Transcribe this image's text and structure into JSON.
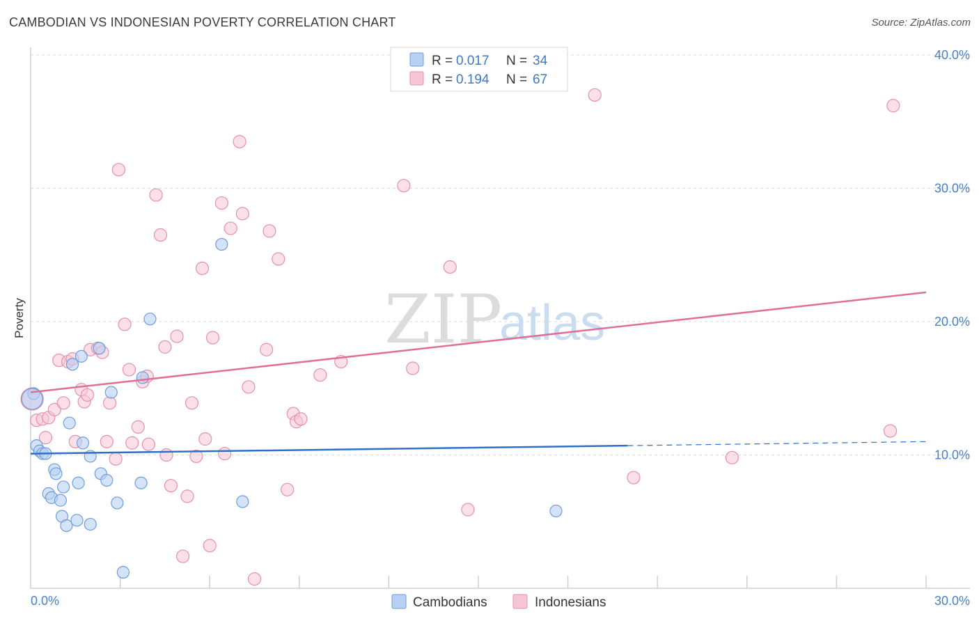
{
  "title": "CAMBODIAN VS INDONESIAN POVERTY CORRELATION CHART",
  "source": "Source: ZipAtlas.com",
  "watermark": {
    "zip": "ZIP",
    "atlas": "atlas"
  },
  "colors": {
    "cambodians_fill": "#b7d0f3",
    "cambodians_stroke": "#6e9ddc",
    "cambodians_line": "#2d6fc9",
    "indonesians_fill": "#f7c6d6",
    "indonesians_stroke": "#e58fae",
    "indonesians_line": "#e06f98",
    "grid": "#d9d9d9",
    "tick_text": "#4a7fc8"
  },
  "legend": {
    "r_label": "R =",
    "n_label": "N =",
    "cambodians_r": "0.017",
    "cambodians_n": "34",
    "indonesians_r": "0.194",
    "indonesians_n": "67"
  },
  "bottom_legend": {
    "cambodians": "Cambodians",
    "indonesians": "Indonesians"
  },
  "chart_data": {
    "type": "scatter",
    "title": "CAMBODIAN VS INDONESIAN POVERTY CORRELATION CHART",
    "xlabel": "",
    "ylabel": "Poverty",
    "xlim": [
      0,
      30
    ],
    "ylim": [
      0,
      40
    ],
    "x_tick_labels": [
      "0.0%",
      "30.0%"
    ],
    "y_ticks": [
      10,
      20,
      30,
      40
    ],
    "y_tick_labels": [
      "10.0%",
      "20.0%",
      "30.0%",
      "40.0%"
    ],
    "series": [
      {
        "name": "Cambodians",
        "points": [
          [
            0.1,
            14.6
          ],
          [
            0.2,
            10.7
          ],
          [
            0.3,
            10.3
          ],
          [
            0.4,
            10.1
          ],
          [
            0.5,
            10.1
          ],
          [
            0.6,
            7.1
          ],
          [
            0.7,
            6.8
          ],
          [
            0.8,
            8.9
          ],
          [
            0.85,
            8.6
          ],
          [
            1.0,
            6.6
          ],
          [
            1.05,
            5.4
          ],
          [
            1.1,
            7.6
          ],
          [
            1.2,
            4.7
          ],
          [
            1.3,
            12.4
          ],
          [
            1.4,
            16.8
          ],
          [
            1.55,
            5.1
          ],
          [
            1.6,
            7.9
          ],
          [
            1.7,
            17.4
          ],
          [
            1.75,
            10.9
          ],
          [
            2.0,
            9.9
          ],
          [
            2.0,
            4.8
          ],
          [
            2.3,
            18.0
          ],
          [
            2.35,
            8.6
          ],
          [
            2.55,
            8.1
          ],
          [
            2.7,
            14.7
          ],
          [
            2.9,
            6.4
          ],
          [
            3.1,
            1.2
          ],
          [
            3.7,
            7.9
          ],
          [
            3.75,
            15.8
          ],
          [
            4.0,
            20.2
          ],
          [
            6.4,
            25.8
          ],
          [
            7.1,
            6.5
          ],
          [
            17.6,
            5.8
          ],
          [
            0.05,
            14.2
          ]
        ],
        "trend": {
          "x": [
            0,
            20
          ],
          "y": [
            10.1,
            10.7
          ],
          "extended_x": [
            20,
            30
          ],
          "extended_y": [
            10.7,
            11.0
          ]
        }
      },
      {
        "name": "Indonesians",
        "points": [
          [
            0.05,
            14.2
          ],
          [
            0.2,
            12.6
          ],
          [
            0.4,
            12.7
          ],
          [
            0.5,
            11.3
          ],
          [
            0.6,
            12.8
          ],
          [
            0.8,
            13.4
          ],
          [
            0.95,
            17.1
          ],
          [
            1.1,
            13.9
          ],
          [
            1.25,
            17.0
          ],
          [
            1.4,
            17.2
          ],
          [
            1.5,
            11.0
          ],
          [
            1.7,
            14.9
          ],
          [
            1.8,
            14.0
          ],
          [
            1.9,
            14.5
          ],
          [
            2.0,
            17.9
          ],
          [
            2.25,
            18.0
          ],
          [
            2.4,
            17.7
          ],
          [
            2.55,
            11.0
          ],
          [
            2.65,
            13.9
          ],
          [
            2.85,
            9.7
          ],
          [
            2.95,
            31.4
          ],
          [
            3.15,
            19.8
          ],
          [
            3.3,
            16.4
          ],
          [
            3.4,
            10.9
          ],
          [
            3.6,
            12.1
          ],
          [
            3.75,
            15.5
          ],
          [
            3.9,
            15.9
          ],
          [
            3.95,
            10.8
          ],
          [
            4.2,
            29.5
          ],
          [
            4.35,
            26.5
          ],
          [
            4.5,
            18.1
          ],
          [
            4.55,
            10.0
          ],
          [
            4.7,
            7.7
          ],
          [
            4.9,
            18.9
          ],
          [
            5.1,
            2.4
          ],
          [
            5.25,
            6.9
          ],
          [
            5.4,
            13.9
          ],
          [
            5.55,
            9.9
          ],
          [
            5.75,
            24.0
          ],
          [
            5.85,
            11.2
          ],
          [
            6.0,
            3.2
          ],
          [
            6.1,
            18.8
          ],
          [
            6.4,
            28.9
          ],
          [
            6.5,
            10.1
          ],
          [
            6.7,
            27.0
          ],
          [
            7.0,
            33.5
          ],
          [
            7.1,
            28.1
          ],
          [
            7.3,
            15.1
          ],
          [
            7.5,
            0.7
          ],
          [
            7.9,
            17.9
          ],
          [
            8.0,
            26.8
          ],
          [
            8.3,
            24.7
          ],
          [
            8.6,
            7.4
          ],
          [
            8.8,
            13.1
          ],
          [
            8.9,
            12.5
          ],
          [
            9.05,
            12.7
          ],
          [
            9.7,
            16.0
          ],
          [
            10.4,
            17.0
          ],
          [
            12.5,
            30.2
          ],
          [
            12.8,
            16.5
          ],
          [
            14.05,
            24.1
          ],
          [
            14.65,
            5.9
          ],
          [
            18.9,
            37.0
          ],
          [
            20.2,
            8.3
          ],
          [
            23.5,
            9.8
          ],
          [
            28.8,
            11.8
          ],
          [
            28.9,
            36.2
          ]
        ],
        "trend": {
          "x": [
            0,
            30
          ],
          "y": [
            14.7,
            22.2
          ]
        }
      }
    ]
  }
}
